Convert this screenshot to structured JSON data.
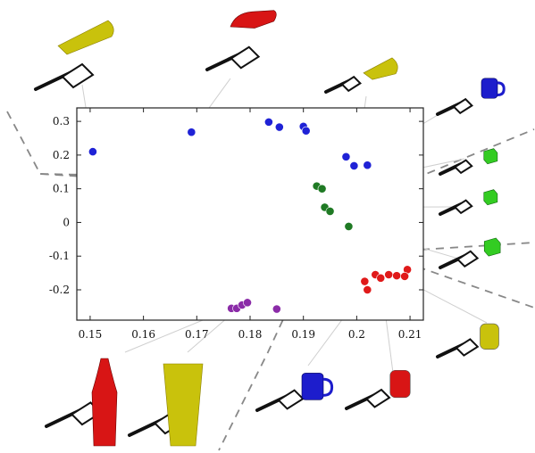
{
  "chart_data": {
    "type": "scatter",
    "title": "",
    "xlabel": "",
    "ylabel": "",
    "xlim": [
      0.1475,
      0.2125
    ],
    "ylim": [
      -0.29,
      0.34
    ],
    "x_ticks": [
      "0.15",
      "0.16",
      "0.17",
      "0.18",
      "0.19",
      "0.2",
      "0.21"
    ],
    "y_ticks": [
      "0.3",
      "0.2",
      "0.1",
      "0",
      "-0.1",
      "-0.2"
    ],
    "grid": false,
    "legend": "none",
    "series": [
      {
        "color": "#1f22d6",
        "x": [
          0.1505,
          0.169,
          0.1835,
          0.1855,
          0.19,
          0.1905,
          0.198,
          0.1995,
          0.202
        ],
        "y": [
          0.21,
          0.268,
          0.298,
          0.283,
          0.285,
          0.272,
          0.195,
          0.168,
          0.17
        ]
      },
      {
        "color": "#1f7a24",
        "x": [
          0.1925,
          0.1935,
          0.194,
          0.195,
          0.1985
        ],
        "y": [
          0.108,
          0.1,
          0.045,
          0.033,
          -0.012
        ]
      },
      {
        "color": "#e01a1a",
        "x": [
          0.2015,
          0.202,
          0.2035,
          0.2045,
          0.206,
          0.2075,
          0.2095,
          0.209
        ],
        "y": [
          -0.175,
          -0.2,
          -0.155,
          -0.165,
          -0.155,
          -0.158,
          -0.14,
          -0.16
        ]
      },
      {
        "color": "#8b2ca8",
        "x": [
          0.1765,
          0.1775,
          0.1785,
          0.1795,
          0.185
        ],
        "y": [
          -0.255,
          -0.255,
          -0.245,
          -0.238,
          -0.257
        ]
      }
    ]
  },
  "thumbnails": [
    {
      "name": "yellow-cup-top",
      "color": "#c9c20c",
      "shape": "cup"
    },
    {
      "name": "red-bottle-top",
      "color": "#d81515",
      "shape": "bottle"
    },
    {
      "name": "yellow-cup-small",
      "color": "#c9c20c",
      "shape": "cup"
    },
    {
      "name": "blue-mug-right",
      "color": "#1d1dcc",
      "shape": "mug"
    },
    {
      "name": "green-box-1",
      "color": "#33cc22",
      "shape": "box"
    },
    {
      "name": "green-box-2",
      "color": "#33cc22",
      "shape": "box"
    },
    {
      "name": "green-box-3",
      "color": "#33cc22",
      "shape": "box"
    },
    {
      "name": "yellow-can-right",
      "color": "#c9c20c",
      "shape": "can"
    },
    {
      "name": "red-bottle-bottom",
      "color": "#d81515",
      "shape": "bottle"
    },
    {
      "name": "yellow-cup-bottom",
      "color": "#c9c20c",
      "shape": "cup"
    },
    {
      "name": "blue-mug-bottom",
      "color": "#1d1dcc",
      "shape": "mug"
    },
    {
      "name": "red-can-bottom",
      "color": "#d81515",
      "shape": "can"
    }
  ]
}
